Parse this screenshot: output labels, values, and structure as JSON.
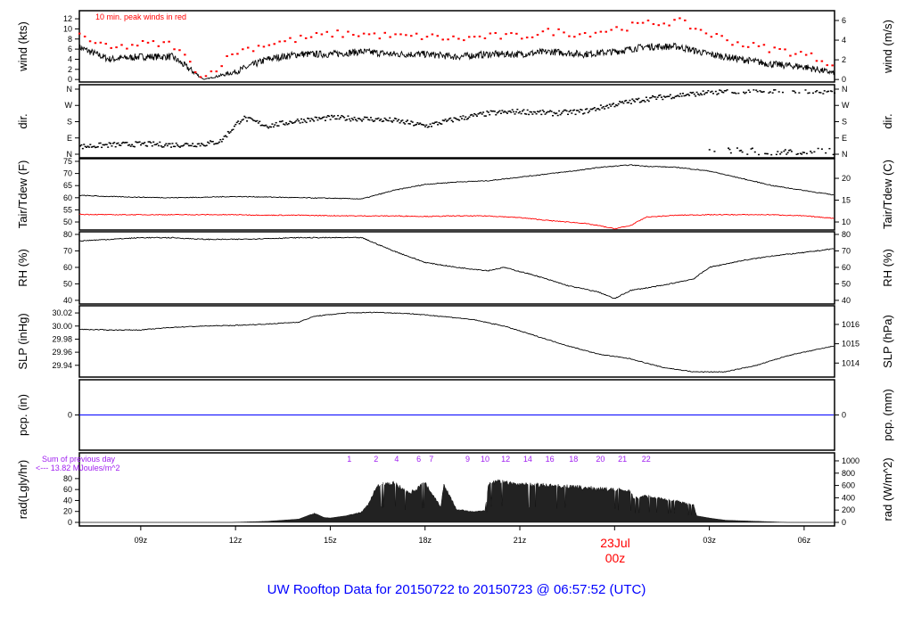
{
  "title": "UW Rooftop Data for 20150722  to  20150723 @ 06:57:52  (UTC)",
  "date_marker": {
    "label": "23Jul",
    "sub": "00z",
    "color": "#ff0000"
  },
  "colors": {
    "title": "#0000ff",
    "peak": "#ff0000",
    "dew": "#ff0000",
    "pcp": "#0000ff",
    "annot": "#a020f0",
    "line": "#000000"
  },
  "chart_data": [
    {
      "type": "line",
      "id": "wind",
      "ylabel": "wind (kts)",
      "ylabel_right": "wind (m/s)",
      "annotation": "10 min. peak winds in red",
      "ylim": [
        -0.5,
        13.6
      ],
      "ticks": [
        0,
        2,
        4,
        6,
        8,
        10,
        12
      ],
      "ticks_right": [
        0,
        2,
        4,
        6
      ],
      "x_hours_utc_from_0700": [
        0,
        1,
        2,
        3,
        4,
        5,
        6,
        7,
        8,
        9,
        10,
        11,
        12,
        13,
        14,
        15,
        16,
        17,
        18,
        19,
        20,
        21,
        22,
        23,
        24
      ],
      "series": [
        {
          "name": "wind_kts",
          "values": [
            6.5,
            4,
            4.5,
            4.5,
            0,
            1.5,
            4,
            5,
            5,
            5.5,
            5,
            5,
            4.5,
            5,
            5,
            5.5,
            5,
            5.5,
            6.5,
            6.5,
            5,
            4,
            3,
            2.5,
            1.2
          ]
        },
        {
          "name": "peak_kts",
          "values": [
            9,
            6,
            7,
            7,
            0.3,
            5.5,
            7,
            8,
            9,
            9,
            8.5,
            8.5,
            8,
            8.5,
            8.5,
            9.5,
            9,
            10,
            11,
            11.5,
            9,
            7,
            6,
            5,
            3
          ]
        }
      ]
    },
    {
      "type": "scatter",
      "id": "dir",
      "ylabel": "dir.",
      "ylabel_right": "dir.",
      "ylim": [
        -19.7,
        384.6
      ],
      "ticks": [
        0,
        90,
        180,
        270,
        360
      ],
      "tick_labels": [
        "N",
        "E",
        "S",
        "W",
        "N"
      ],
      "x_hours_utc_from_0700": [
        0,
        1,
        2,
        3,
        4,
        4.5,
        5.2,
        6,
        7,
        8,
        9,
        10,
        11,
        12,
        13,
        14,
        15,
        16,
        17,
        18,
        19,
        20,
        21,
        22,
        23,
        24
      ],
      "series": [
        {
          "name": "direction_deg",
          "values": [
            45,
            55,
            60,
            55,
            60,
            75,
            205,
            160,
            190,
            205,
            200,
            190,
            160,
            200,
            230,
            240,
            230,
            240,
            280,
            310,
            330,
            345,
            350,
            355,
            355,
            350
          ]
        }
      ]
    },
    {
      "type": "line",
      "id": "temp",
      "ylabel": "Tair/Tdew (F)",
      "ylabel_right": "Tair/Tdew (C)",
      "ylim": [
        46.7,
        76.1
      ],
      "ticks": [
        50,
        55,
        60,
        65,
        70,
        75
      ],
      "ticks_right": [
        10,
        15,
        20
      ],
      "x_hours_utc_from_0700": [
        0,
        1,
        2,
        3,
        4,
        5,
        6,
        7,
        8,
        9,
        10,
        11,
        12,
        13,
        14,
        15,
        16,
        16.5,
        17,
        17.5,
        18,
        19,
        20,
        21,
        22,
        23,
        24
      ],
      "series": [
        {
          "name": "Tair",
          "values": [
            61,
            60.5,
            60.2,
            60,
            60.2,
            60.5,
            60.3,
            60,
            59.8,
            59.5,
            63,
            65.5,
            66.5,
            67,
            68.5,
            70,
            71.5,
            72.5,
            73,
            73.5,
            73,
            72.5,
            71,
            68,
            65,
            63,
            61
          ]
        },
        {
          "name": "Tdew",
          "values": [
            53.2,
            53,
            53,
            53,
            53,
            53,
            52.8,
            52.8,
            52.6,
            52.5,
            52.5,
            52.3,
            52.5,
            52.5,
            51.8,
            50.5,
            49.5,
            48.5,
            47.2,
            48.5,
            52,
            52.8,
            53,
            53,
            53,
            52.5,
            51.5
          ]
        }
      ]
    },
    {
      "type": "line",
      "id": "rh",
      "ylabel": "RH (%)",
      "ylabel_right": "RH (%)",
      "ylim": [
        37.8,
        81.6
      ],
      "ticks": [
        40,
        50,
        60,
        70,
        80
      ],
      "ticks_right": [
        40,
        50,
        60,
        70,
        80
      ],
      "x_hours_utc_from_0700": [
        0,
        1,
        2,
        3,
        4,
        5,
        6,
        7,
        8,
        9,
        10,
        11,
        12,
        13,
        13.5,
        14.5,
        15.5,
        16.5,
        17,
        17.5,
        18.5,
        19.5,
        20,
        21,
        22,
        23,
        24
      ],
      "series": [
        {
          "name": "RH",
          "values": [
            76,
            77,
            78,
            78,
            77,
            77,
            77.5,
            78,
            78,
            78,
            70,
            63,
            60,
            58,
            60,
            55,
            49,
            45,
            41,
            46,
            49,
            53,
            60,
            64,
            67,
            69,
            71.5
          ]
        }
      ]
    },
    {
      "type": "line",
      "id": "slp",
      "ylabel": "SLP (inHg)",
      "ylabel_right": "SLP (hPa)",
      "ylim": [
        29.922,
        30.031
      ],
      "ticks": [
        29.94,
        29.96,
        29.98,
        30.0,
        30.02
      ],
      "tick_labels": [
        "29.94",
        "29.96",
        "29.98",
        "30.00",
        "30.02"
      ],
      "ticks_right": [
        1014,
        1015,
        1016
      ],
      "x_hours_utc_from_0700": [
        0,
        1,
        2,
        3,
        4,
        5,
        6,
        7,
        7.5,
        8.5,
        9.5,
        10.5,
        11.5,
        12.5,
        13.5,
        14.5,
        15.5,
        16.5,
        17.5,
        18.5,
        19.5,
        20.5,
        21.5,
        22.5,
        23.5,
        24
      ],
      "series": [
        {
          "name": "SLP",
          "values": [
            29.995,
            29.994,
            29.994,
            29.998,
            30.0,
            30.001,
            30.003,
            30.006,
            30.015,
            30.02,
            30.021,
            30.019,
            30.015,
            30.01,
            30.0,
            29.985,
            29.97,
            29.957,
            29.95,
            29.937,
            29.93,
            29.93,
            29.94,
            29.955,
            29.965,
            29.97
          ]
        }
      ]
    },
    {
      "type": "line",
      "id": "pcp",
      "ylabel": "pcp. (in)",
      "ylabel_right": "pcp. (mm)",
      "ylim": [
        -1,
        1
      ],
      "ticks": [
        0
      ],
      "ticks_right": [
        0
      ],
      "x_hours_utc_from_0700": [
        0,
        24
      ],
      "series": [
        {
          "name": "pcp",
          "values": [
            0,
            0
          ]
        }
      ]
    },
    {
      "type": "area",
      "id": "rad",
      "ylabel": "rad(Lgly/hr)",
      "ylabel_right": "rad (W/m^2)",
      "ylim": [
        -6.5,
        127
      ],
      "ylim_right": [
        -58,
        1130
      ],
      "ticks": [
        0,
        20,
        40,
        60,
        80
      ],
      "ticks_right": [
        0,
        200,
        400,
        600,
        800,
        1000
      ],
      "annotation_lines": [
        "Sum of previous day",
        "<--- 13.82 MJoules/m^2"
      ],
      "x_hours_utc_from_0700": [
        0,
        4.9,
        5,
        6,
        7,
        7.5,
        7.8,
        8,
        8.5,
        9,
        9.2,
        9.5,
        10,
        10.5,
        11,
        11.5,
        11.6,
        12,
        12.5,
        12.9,
        13,
        13.3,
        14,
        15,
        16,
        17,
        17.5,
        17.6,
        18,
        19,
        19.5,
        19.6,
        20,
        20.5,
        21,
        22,
        22.5,
        24
      ],
      "series": [
        {
          "name": "radiation",
          "values": [
            0,
            0,
            0.3,
            2,
            6,
            17,
            9,
            8,
            12,
            20,
            35,
            70,
            75,
            55,
            75,
            30,
            72,
            25,
            20,
            22,
            72,
            78,
            72,
            70,
            66,
            62,
            60,
            45,
            50,
            40,
            33,
            12,
            8,
            4,
            3,
            1,
            0,
            0
          ]
        }
      ],
      "hour_marks": {
        "labels": [
          "1",
          "2",
          "4",
          "6",
          "7",
          "9",
          "10",
          "12",
          "14",
          "16",
          "18",
          "20",
          "21",
          "22"
        ],
        "x_hours_utc_from_0700": [
          8.6,
          9.45,
          10.1,
          10.8,
          11.2,
          12.35,
          12.9,
          13.55,
          14.25,
          14.95,
          15.7,
          16.55,
          17.25,
          18.0
        ]
      }
    }
  ],
  "x_axis": {
    "ticks_hours_from_0700": [
      2,
      5,
      8,
      11,
      14,
      17,
      20,
      23
    ],
    "tick_labels": [
      "09z",
      "12z",
      "15z",
      "18z",
      "21z",
      "00z",
      "03z",
      "06z"
    ],
    "date_hour": 17
  }
}
